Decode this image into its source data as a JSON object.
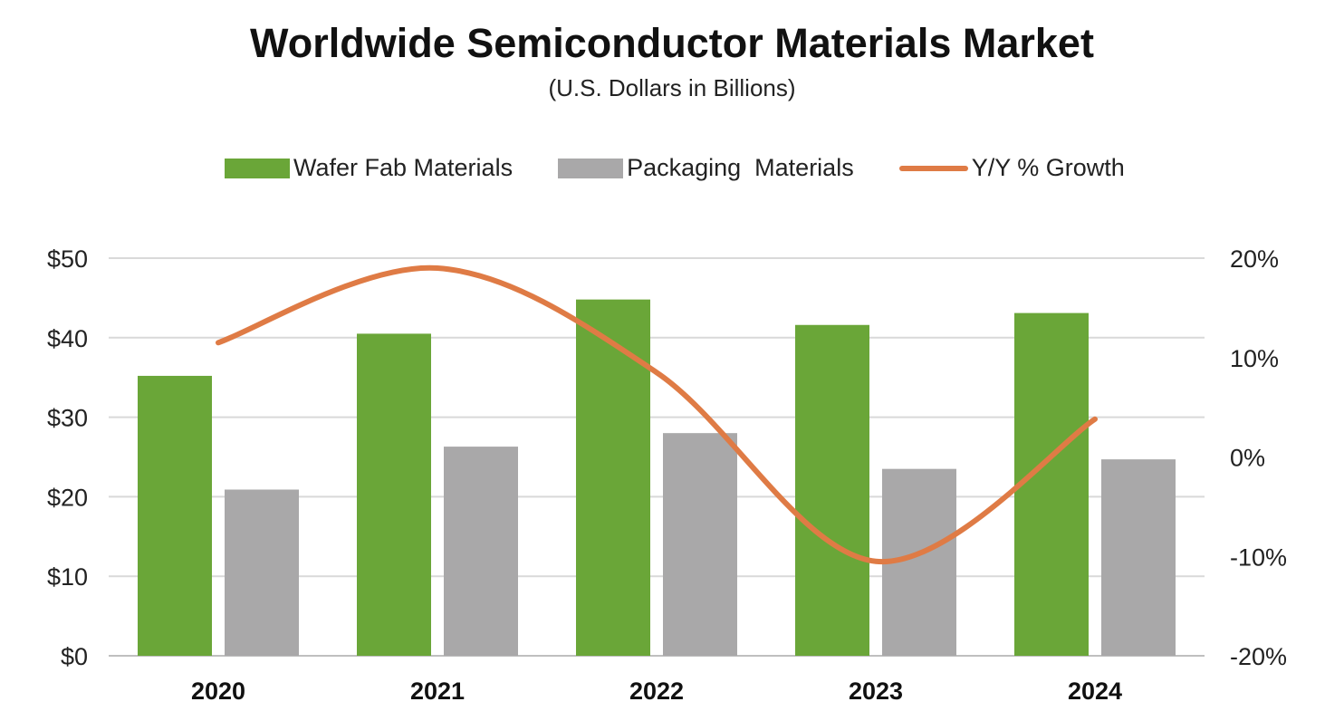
{
  "chart_data": {
    "type": "bar",
    "title": "Worldwide Semiconductor Materials Market",
    "subtitle": "(U.S. Dollars in Billions)",
    "categories": [
      "2020",
      "2021",
      "2022",
      "2023",
      "2024"
    ],
    "series": [
      {
        "name": "Wafer Fab Materials",
        "type": "bar",
        "axis": "left",
        "color": "#6aa638",
        "values": [
          35.2,
          40.5,
          44.8,
          41.6,
          43.1
        ]
      },
      {
        "name": "Packaging  Materials",
        "type": "bar",
        "axis": "left",
        "color": "#a9a8a9",
        "values": [
          20.9,
          26.3,
          28.0,
          23.5,
          24.7
        ]
      },
      {
        "name": "Y/Y % Growth",
        "type": "line",
        "axis": "right",
        "color": "#df7b45",
        "values": [
          11.5,
          19.0,
          8.5,
          -10.5,
          3.8
        ]
      }
    ],
    "y_left": {
      "min": 0,
      "max": 50,
      "ticks": [
        "$0",
        "$10",
        "$20",
        "$30",
        "$40",
        "$50"
      ]
    },
    "y_right": {
      "min": -20,
      "max": 20,
      "ticks": [
        "-20%",
        "-10%",
        "0%",
        "10%",
        "20%"
      ]
    },
    "grid": true,
    "legend_position": "top"
  }
}
